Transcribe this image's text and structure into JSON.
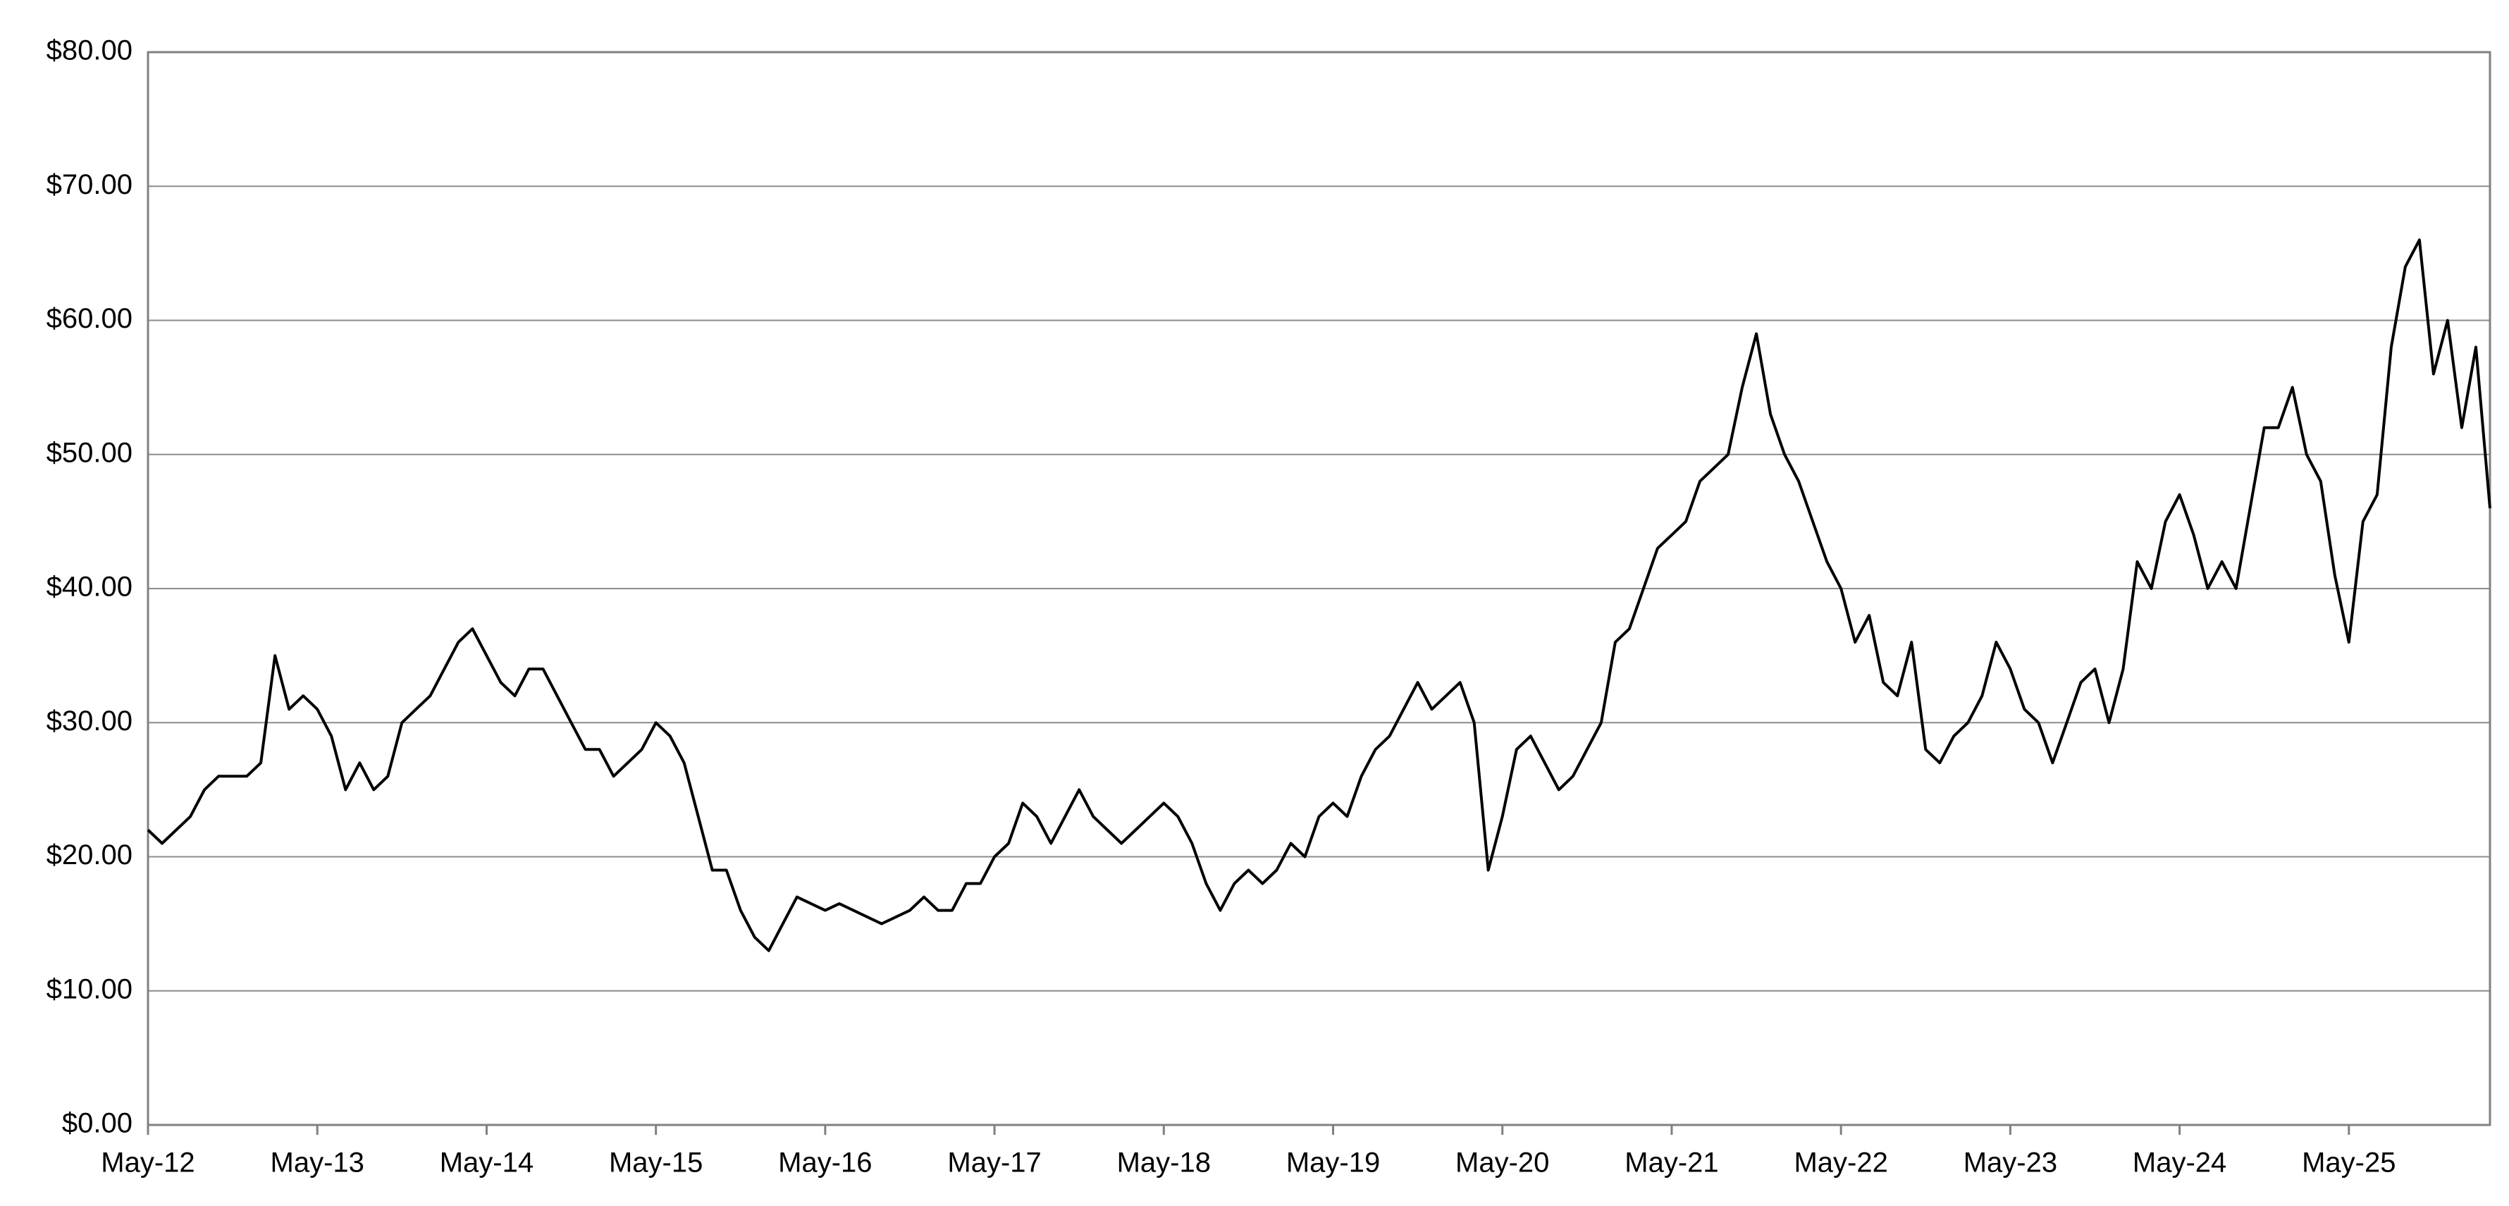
{
  "chart_data": {
    "type": "line",
    "x": [
      "2012-05",
      "2012-06",
      "2012-07",
      "2012-08",
      "2012-09",
      "2012-10",
      "2012-11",
      "2012-12",
      "2013-01",
      "2013-02",
      "2013-03",
      "2013-04",
      "2013-05",
      "2013-06",
      "2013-07",
      "2013-08",
      "2013-09",
      "2013-10",
      "2013-11",
      "2013-12",
      "2014-01",
      "2014-02",
      "2014-03",
      "2014-04",
      "2014-05",
      "2014-06",
      "2014-07",
      "2014-08",
      "2014-09",
      "2014-10",
      "2014-11",
      "2014-12",
      "2015-01",
      "2015-02",
      "2015-03",
      "2015-04",
      "2015-05",
      "2015-06",
      "2015-07",
      "2015-08",
      "2015-09",
      "2015-10",
      "2015-11",
      "2015-12",
      "2016-01",
      "2016-02",
      "2016-03",
      "2016-04",
      "2016-05",
      "2016-06",
      "2016-07",
      "2016-08",
      "2016-09",
      "2016-10",
      "2016-11",
      "2016-12",
      "2017-01",
      "2017-02",
      "2017-03",
      "2017-04",
      "2017-05",
      "2017-06",
      "2017-07",
      "2017-08",
      "2017-09",
      "2017-10",
      "2017-11",
      "2017-12",
      "2018-01",
      "2018-02",
      "2018-03",
      "2018-04",
      "2018-05",
      "2018-06",
      "2018-07",
      "2018-08",
      "2018-09",
      "2018-10",
      "2018-11",
      "2018-12",
      "2019-01",
      "2019-02",
      "2019-03",
      "2019-04",
      "2019-05",
      "2019-06",
      "2019-07",
      "2019-08",
      "2019-09",
      "2019-10",
      "2019-11",
      "2019-12",
      "2020-01",
      "2020-02",
      "2020-03",
      "2020-04",
      "2020-05",
      "2020-06",
      "2020-07",
      "2020-08",
      "2020-09",
      "2020-10",
      "2020-11",
      "2020-12",
      "2021-01",
      "2021-02",
      "2021-03",
      "2021-04",
      "2021-05",
      "2021-06",
      "2021-07",
      "2021-08",
      "2021-09",
      "2021-10",
      "2021-11",
      "2021-12",
      "2022-01",
      "2022-02",
      "2022-03",
      "2022-04",
      "2022-05",
      "2022-06",
      "2022-07",
      "2022-08",
      "2022-09",
      "2022-10",
      "2022-11",
      "2022-12",
      "2023-01",
      "2023-02",
      "2023-03",
      "2023-04",
      "2023-05",
      "2023-06",
      "2023-07",
      "2023-08",
      "2023-09",
      "2023-10",
      "2023-11",
      "2023-12",
      "2024-01",
      "2024-02",
      "2024-03",
      "2024-04",
      "2024-05",
      "2024-06",
      "2024-07",
      "2024-08",
      "2024-09",
      "2024-10",
      "2024-11",
      "2024-12",
      "2025-01",
      "2025-02",
      "2025-03",
      "2025-04",
      "2025-05",
      "2025-06",
      "2025-07",
      "2025-08",
      "2025-09",
      "2025-10",
      "2025-11",
      "2025-12",
      "2026-01",
      "2026-02",
      "2026-03"
    ],
    "series": [
      {
        "color": "#000000",
        "values": [
          22,
          21,
          22,
          23,
          25,
          26,
          26,
          26,
          27,
          35,
          31,
          32,
          31,
          29,
          25,
          27,
          25,
          26,
          30,
          31,
          32,
          34,
          36,
          37,
          35,
          33,
          32,
          34,
          34,
          32,
          30,
          28,
          28,
          26,
          27,
          28,
          30,
          29,
          27,
          23,
          19,
          19,
          16,
          14,
          13,
          15,
          17,
          16.5,
          16,
          16.5,
          16,
          15.5,
          15,
          15.5,
          16,
          17,
          16,
          16,
          18,
          18,
          20,
          21,
          24,
          23,
          21,
          23,
          25,
          23,
          22,
          21,
          22,
          23,
          24,
          23,
          21,
          18,
          16,
          18,
          19,
          18,
          19,
          21,
          20,
          23,
          24,
          23,
          26,
          28,
          29,
          31,
          33,
          31,
          32,
          33,
          30,
          19,
          23,
          28,
          29,
          27,
          25,
          26,
          28,
          30,
          36,
          37,
          40,
          43,
          44,
          45,
          48,
          49,
          50,
          55,
          59,
          53,
          50,
          48,
          45,
          42,
          40,
          36,
          38,
          33,
          32,
          36,
          28,
          27,
          29,
          30,
          32,
          36,
          34,
          31,
          30,
          27,
          30,
          33,
          34,
          30,
          34,
          42,
          40,
          45,
          47,
          44,
          40,
          42,
          40,
          46,
          52,
          52,
          55,
          50,
          48,
          41,
          36,
          45,
          47,
          58,
          64,
          66,
          56,
          60,
          52,
          58,
          46
        ]
      }
    ],
    "xlim": [
      "2012-05",
      "2026-03"
    ],
    "xticks": [
      {
        "value": "2012-05",
        "label": "May-12"
      },
      {
        "value": "2013-05",
        "label": "May-13"
      },
      {
        "value": "2014-05",
        "label": "May-14"
      },
      {
        "value": "2015-05",
        "label": "May-15"
      },
      {
        "value": "2016-05",
        "label": "May-16"
      },
      {
        "value": "2017-05",
        "label": "May-17"
      },
      {
        "value": "2018-05",
        "label": "May-18"
      },
      {
        "value": "2019-05",
        "label": "May-19"
      },
      {
        "value": "2020-05",
        "label": "May-20"
      },
      {
        "value": "2021-05",
        "label": "May-21"
      },
      {
        "value": "2022-05",
        "label": "May-22"
      },
      {
        "value": "2023-05",
        "label": "May-23"
      },
      {
        "value": "2024-05",
        "label": "May-24"
      },
      {
        "value": "2025-05",
        "label": "May-25"
      }
    ],
    "ylim": [
      0,
      80
    ],
    "yticks": [
      {
        "value": 0,
        "label": "$0.00"
      },
      {
        "value": 10,
        "label": "$10.00"
      },
      {
        "value": 20,
        "label": "$20.00"
      },
      {
        "value": 30,
        "label": "$30.00"
      },
      {
        "value": 40,
        "label": "$40.00"
      },
      {
        "value": 50,
        "label": "$50.00"
      },
      {
        "value": 60,
        "label": "$60.00"
      },
      {
        "value": 70,
        "label": "$70.00"
      },
      {
        "value": 80,
        "label": "$80.00"
      }
    ],
    "grid": true
  }
}
